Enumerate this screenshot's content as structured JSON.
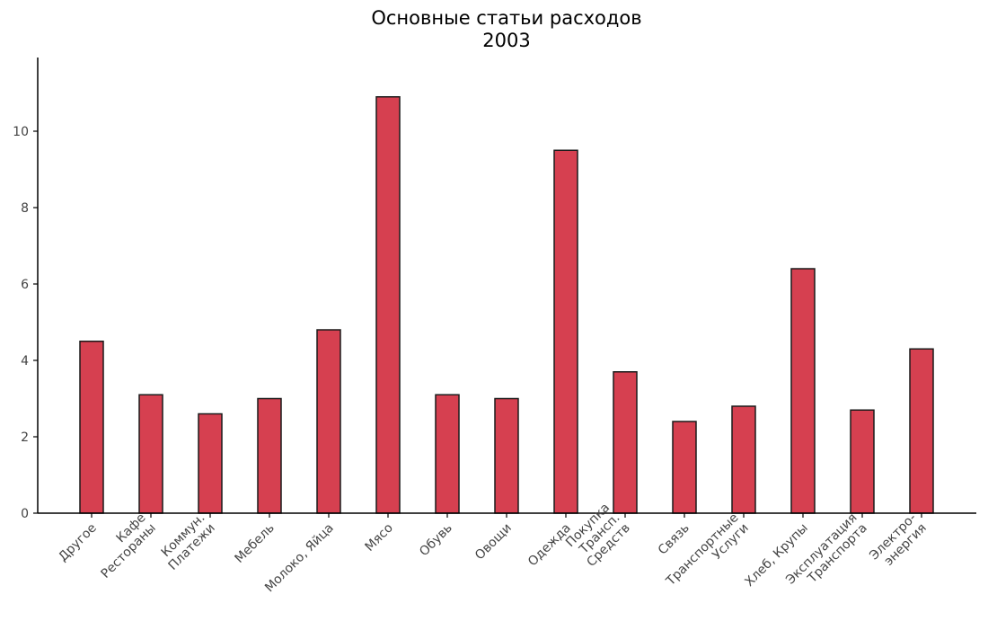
{
  "chart_data": {
    "type": "bar",
    "title": "Основные статьи расходов",
    "subtitle": "2003",
    "xlabel": "",
    "ylabel": "",
    "ylim": [
      0,
      12
    ],
    "yticks": [
      0,
      2,
      4,
      6,
      8,
      10
    ],
    "grid": false,
    "categories": [
      "Другое",
      "Кафе\nРестораны",
      "Коммун.\nПлатежи",
      "Мебель",
      "Молоко, Яйца",
      "Мясо",
      "Обувь",
      "Овощи",
      "Одежда",
      "Покупка\nТрансп.\nСредств",
      "Связь",
      "Транспортные\nУслуги",
      "Хлеб, Крупы",
      "Эксплуатация\nТранспорта",
      "Электро-\nэнергия"
    ],
    "values": [
      4.5,
      3.1,
      2.6,
      3.0,
      4.8,
      10.9,
      3.1,
      3.0,
      9.5,
      3.7,
      2.4,
      2.8,
      6.4,
      2.7,
      4.3
    ],
    "colors": {
      "bar": "#d64050",
      "edge": "#1a1a1a",
      "axis": "#000000",
      "tick_label": "#444444"
    }
  }
}
